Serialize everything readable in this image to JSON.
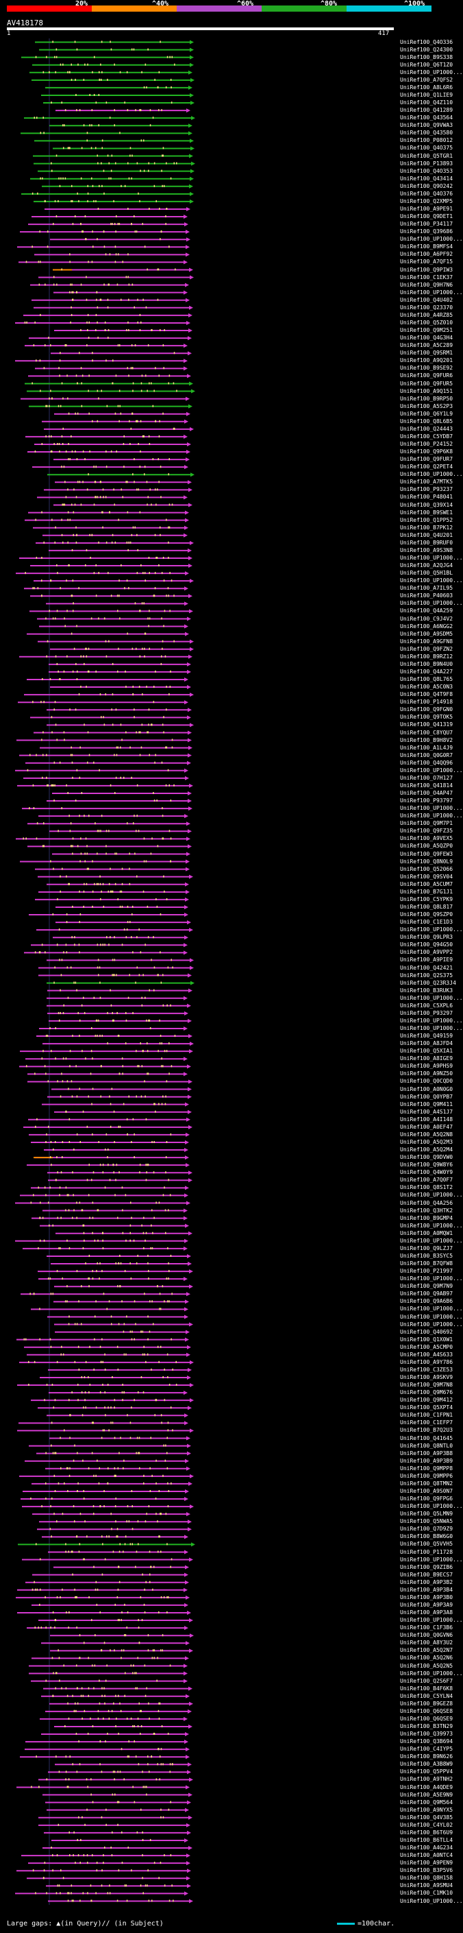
{
  "legend": {
    "labels": [
      "20%",
      "^40%",
      "^60%",
      "^80%",
      "^100%"
    ],
    "colors": [
      "#ff0000",
      "#ff8800",
      "#b04ac8",
      "#22a822",
      "#00c8d8"
    ]
  },
  "query": {
    "title": "AV418178",
    "scale_start": "1",
    "scale_end": "417"
  },
  "colors": {
    "green": "#22b522",
    "magenta": "#d43ad0",
    "orange": "#ff8a00",
    "blue": "#3a4ad0",
    "tick": "#ffe080",
    "ruler": "#ffffff"
  },
  "hits": [
    "UniRef100_Q4O336",
    "UniRef100_Q24300",
    "UniRef100_B9S338",
    "UniRef100_Q6T1Z0",
    "UniRef100_UP1000...",
    "UniRef100_A7QFS2",
    "UniRef100_A8L6R6",
    "UniRef100_Q1LIE9",
    "UniRef100_Q4Z110",
    "UniRef100_Q41289",
    "UniRef100_Q43564",
    "UniRef100_Q9VWA3",
    "UniRef100_Q43580",
    "UniRef100_P08012",
    "UniRef100_Q4O375",
    "UniRef100_Q5TGR1",
    "UniRef100_P13893",
    "UniRef100_Q4O353",
    "UniRef100_Q43414",
    "UniRef100_Q9O242",
    "UniRef100_Q4O376",
    "UniRef100_Q2XMP5",
    "UniRef100_A9PE91",
    "UniRef100_Q9DET1",
    "UniRef100_P34117",
    "UniRef100_Q39686",
    "UniRef100_UP1000...",
    "UniRef100_B9MFS4",
    "UniRef100_A6PF92",
    "UniRef100_A7QF15",
    "UniRef100_Q9PIW3",
    "UniRef100_C1EK37",
    "UniRef100_Q9H7N6",
    "UniRef100_UP1000...",
    "UniRef100_Q4U402",
    "UniRef100_Q23370",
    "UniRef100_A4RZ85",
    "UniRef100_Q5Z010",
    "UniRef100_Q9M251",
    "UniRef100_Q4G3H4",
    "UniRef100_A5C289",
    "UniRef100_Q9SRM1",
    "UniRef100_A9Q201",
    "UniRef100_B9SE92",
    "UniRef100_Q9FUR6",
    "UniRef100_Q9FUR5",
    "UniRef100_A9Q151",
    "UniRef100_B9RP50",
    "UniRef100_A5S2P3",
    "UniRef100_Q6Y1L9",
    "UniRef100_Q8L6B5",
    "UniRef100_Q24443",
    "UniRef100_C5YDB7",
    "UniRef100_P24152",
    "UniRef100_Q9P6K8",
    "UniRef100_Q9FUR7",
    "UniRef100_Q2PET4",
    "UniRef100_UP1000...",
    "UniRef100_A7MTK5",
    "UniRef100_P93237",
    "UniRef100_P48041",
    "UniRef100_Q39X14",
    "UniRef100_B9SWE1",
    "UniRef100_Q1PP52",
    "UniRef100_B7PK12",
    "UniRef100_Q4U201",
    "UniRef100_B9RUF0",
    "UniRef100_A9S3N8",
    "UniRef100_UP1000...",
    "UniRef100_A2QJG4",
    "UniRef100_Q5H1BL",
    "UniRef100_UP1000...",
    "UniRef100_A7IL95",
    "UniRef100_P40603",
    "UniRef100_UP1000...",
    "UniRef100_Q4A259",
    "UniRef100_C9J4V2",
    "UniRef100_A6NGG2",
    "UniRef100_A9SDM5",
    "UniRef100_A9GFN8",
    "UniRef100_Q9FZN2",
    "UniRef100_B9RZ12",
    "UniRef100_B9N4U0",
    "UniRef100_Q4A227",
    "UniRef100_Q8L765",
    "UniRef100_A5C0N3",
    "UniRef100_Q4T9F8",
    "UniRef100_P14918",
    "UniRef100_Q9FGN0",
    "UniRef100_Q9TOK5",
    "UniRef100_Q41319",
    "UniRef100_C8YQU7",
    "UniRef100_B9H8V2",
    "UniRef100_A1L4J9",
    "UniRef100_Q0G0R7",
    "UniRef100_Q4QQ96",
    "UniRef100_UP1000...",
    "UniRef100_O7H127",
    "UniRef100_Q41814",
    "UniRef100_O4AP47",
    "UniRef100_P93797",
    "UniRef100_UP1000...",
    "UniRef100_UP1000...",
    "UniRef100_Q9M7P1",
    "UniRef100_Q9FZ35",
    "UniRef100_A9VEX5",
    "UniRef100_A5QZP0",
    "UniRef100_Q9FEW3",
    "UniRef100_Q8N0L9",
    "UniRef100_Q52066",
    "UniRef100_Q9SV04",
    "UniRef100_A5CUM7",
    "UniRef100_B7G1J1",
    "UniRef100_C5YPK9",
    "UniRef100_Q8L817",
    "UniRef100_Q9SZP0",
    "UniRef100_C1E1D3",
    "UniRef100_UP1000...",
    "UniRef100_Q9LPR3",
    "UniRef100_Q94G50",
    "UniRef100_A9VPP2",
    "UniRef100_A9PIE9",
    "UniRef100_Q42421",
    "UniRef100_Q2S375",
    "UniRef100_Q23R3J4",
    "UniRef100_B3RUK3",
    "UniRef100_UP1000...",
    "UniRef100_C5XPL6",
    "UniRef100_P93297",
    "UniRef100_UP1000...",
    "UniRef100_UP1000...",
    "UniRef100_Q49159",
    "UniRef100_A8JFD4",
    "UniRef100_Q5XIA1",
    "UniRef100_A8IGE9",
    "UniRef100_A9PHS9",
    "UniRef100_A9NZ50",
    "UniRef100_Q0CQD0",
    "UniRef100_A0N0G0",
    "UniRef100_Q0YPB7",
    "UniRef100_Q9M411",
    "UniRef100_A4S1J7",
    "UniRef100_A4I148",
    "UniRef100_A0EF47",
    "UniRef100_A5Q2N8",
    "UniRef100_A5Q2M3",
    "UniRef100_A5Q2M4",
    "UniRef100_Q9DVW0",
    "UniRef100_Q9W8Y6",
    "UniRef100_Q4W0Y9",
    "UniRef100_A7Q0F7",
    "UniRef100_Q8S1T2",
    "UniRef100_UP1000...",
    "UniRef100_Q4A256",
    "UniRef100_Q3HTK2",
    "UniRef100_B9GMP4",
    "UniRef100_UP1000...",
    "UniRef100_A0MQW1",
    "UniRef100_UP1000...",
    "UniRef100_Q9LZJ7",
    "UniRef100_B3SYC5",
    "UniRef100_B7QFW8",
    "UniRef100_P21997",
    "UniRef100_UP1000...",
    "UniRef100_Q9M7N9",
    "UniRef100_Q9AB97",
    "UniRef100_Q9A6B6",
    "UniRef100_UP1000...",
    "UniRef100_UP1000...",
    "UniRef100_UP1000...",
    "UniRef100_Q40692",
    "UniRef100_Q1X0W1",
    "UniRef100_A5CMP0",
    "UniRef100_A4S633",
    "UniRef100_A9Y786",
    "UniRef100_C3ZE53",
    "UniRef100_A9SKV9",
    "UniRef100_Q9M7N8",
    "UniRef100_Q9M676",
    "UniRef100_Q9M412",
    "UniRef100_Q5XPT4",
    "UniRef100_C1FPN1",
    "UniRef100_C1EFP7",
    "UniRef100_B7Q2U3",
    "UniRef100_Q41645",
    "UniRef100_Q8NTL0",
    "UniRef100_A9P3B8",
    "UniRef100_A9P3B9",
    "UniRef100_Q9MPP8",
    "UniRef100_Q9MPP6",
    "UniRef100_Q8TMN2",
    "UniRef100_A9S0N7",
    "UniRef100_Q9FPG6",
    "UniRef100_UP1000...",
    "UniRef100_Q5LMN9",
    "UniRef100_Q5NWA5",
    "UniRef100_Q7D9Z9",
    "UniRef100_B8W6G0",
    "UniRef100_Q5VVH5",
    "UniRef100_P11728",
    "UniRef100_UP1000...",
    "UniRef100_Q9ZIB6",
    "UniRef100_B9ECS7",
    "UniRef100_A9P3B2",
    "UniRef100_A9P3B4",
    "UniRef100_A9P3B0",
    "UniRef100_A9P3A9",
    "UniRef100_A9P3A8",
    "UniRef100_UP1000...",
    "UniRef100_C1F3B6",
    "UniRef100_Q0GVN6",
    "UniRef100_A8Y3U2",
    "UniRef100_A5Q2N7",
    "UniRef100_A5Q2N6",
    "UniRef100_A5Q2N5",
    "UniRef100_UP1000...",
    "UniRef100_Q2S6F7",
    "UniRef100_B4F6K8",
    "UniRef100_C5YLN4",
    "UniRef100_B9GEZ8",
    "UniRef100_Q6QSE8",
    "UniRef100_Q6QSE9",
    "UniRef100_B3TN29",
    "UniRef100_Q39973",
    "UniRef100_Q3B694",
    "UniRef100_C4IYP5",
    "UniRef100_B9N626",
    "UniRef100_A3B8W9",
    "UniRef100_Q5PPV4",
    "UniRef100_A9TNH2",
    "UniRef100_A4QDE9",
    "UniRef100_A5E9N9",
    "UniRef100_Q9M564",
    "UniRef100_A9NYX5",
    "UniRef100_Q4V385",
    "UniRef100_C4YL02",
    "UniRef100_B6T6U9",
    "UniRef100_B6TLL4",
    "UniRef100_A4G234",
    "UniRef100_A0NTC4",
    "UniRef100_A9PEN9",
    "UniRef100_B3P5V6",
    "UniRef100_Q8H158",
    "UniRef100_A9SMU4",
    "UniRef100_C1MK10",
    "UniRef100_UP1000..."
  ],
  "footer": {
    "gaps_text": "Large gaps: ▲(in Query)/∕ (in Subject)",
    "scale_text": "=100char."
  }
}
